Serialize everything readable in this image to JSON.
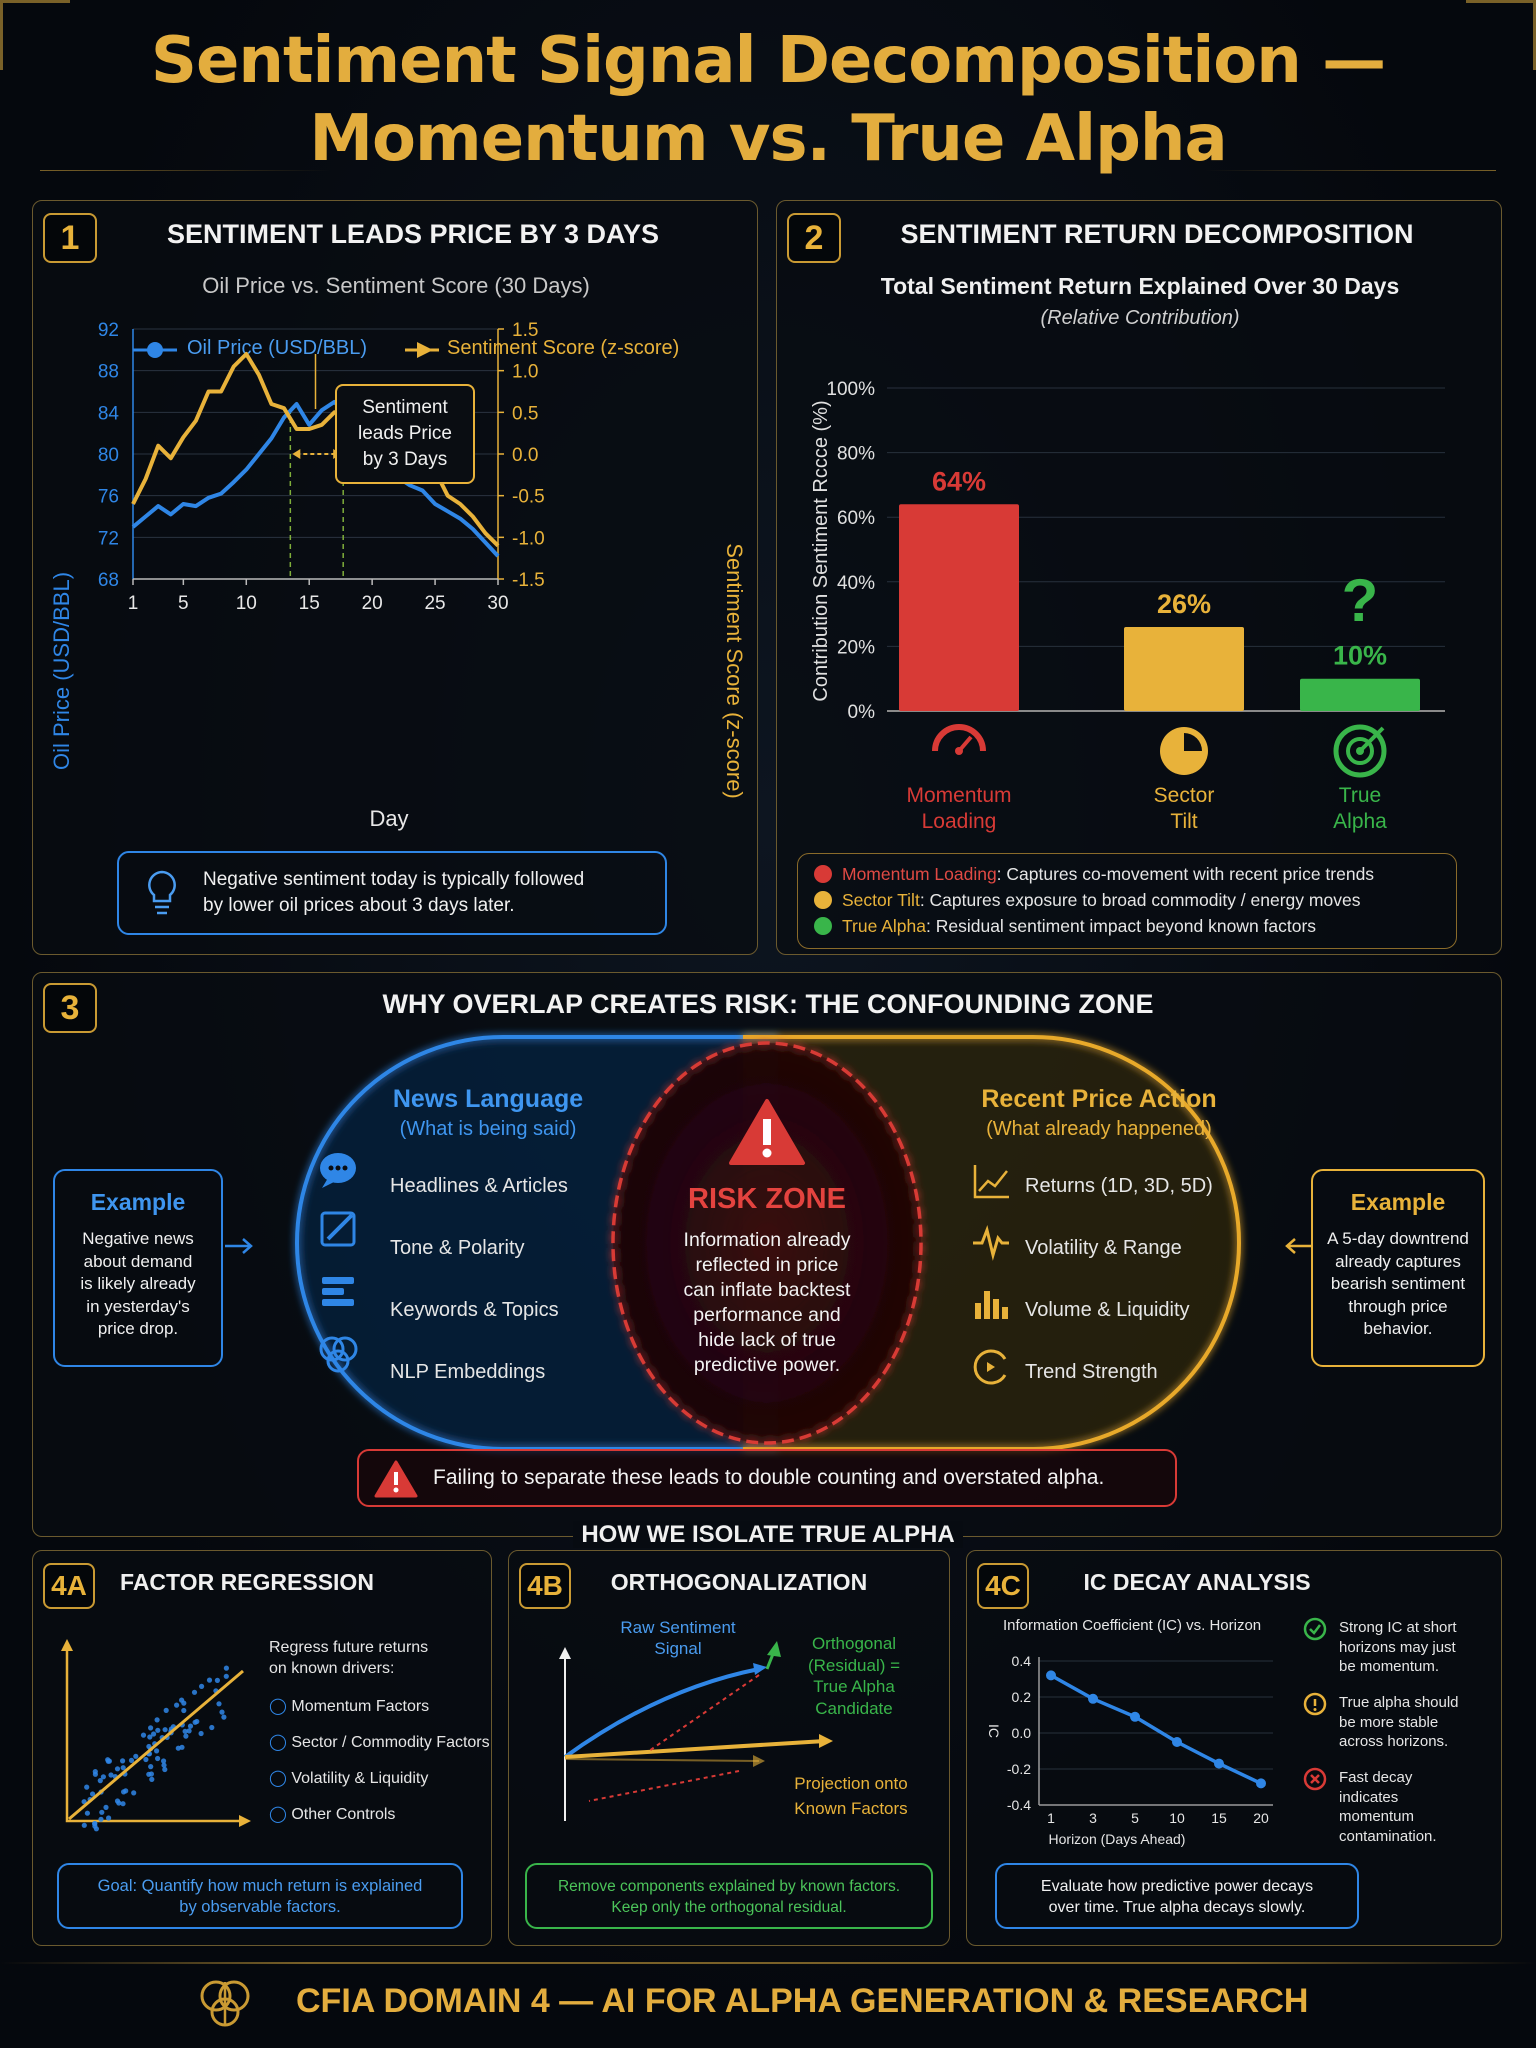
{
  "title_line1": "Sentiment Signal Decomposition —",
  "title_line2": "Momentum vs. True Alpha",
  "p1": {
    "num": "1",
    "title": "SENTIMENT LEADS PRICE BY 3 DAYS",
    "subtitle": "Oil Price vs. Sentiment Score (30 Days)",
    "legend_oil": "Oil Price (USD/BBL)",
    "legend_sent": "Sentiment Score (z-score)",
    "callout_l1": "Sentiment",
    "callout_l2": "leads Price",
    "callout_l3": "by 3 Days",
    "ylabel_left": "Oil Price (USD/BBL)",
    "ylabel_right": "Sentiment Score (z-score)",
    "xlabel": "Day",
    "note_l1": "Negative sentiment today is typically followed",
    "note_l2": "by lower oil prices about 3 days later."
  },
  "p2": {
    "num": "2",
    "title": "SENTIMENT RETURN DECOMPOSITION",
    "subtitle": "Total Sentiment Return Explained Over 30 Days",
    "subtitle2": "(Relative Contribution)",
    "ylabel": "Contribution Sentiment Rccce (%)",
    "question": "?",
    "cat1_l1": "Momentum",
    "cat1_l2": "Loading",
    "cat2_l1": "Sector",
    "cat2_l2": "Tilt",
    "cat3_l1": "True",
    "cat3_l2": "Alpha",
    "leg1_name": "Momentum Loading",
    "leg1_desc": ": Captures co-movement with recent price trends",
    "leg2_name": "Sector Tilt",
    "leg2_desc": ": Captures exposure to broad commodity / energy moves",
    "leg3_name": "True Alpha",
    "leg3_desc": ": Residual sentiment impact beyond known factors"
  },
  "p3": {
    "num": "3",
    "title": "WHY OVERLAP CREATES RISK: THE CONFOUNDING ZONE",
    "left_title": "News Language",
    "left_sub": "(What is being said)",
    "left_items": [
      "Headlines & Articles",
      "Tone & Polarity",
      "Keywords & Topics",
      "NLP Embeddings"
    ],
    "right_title": "Recent Price Action",
    "right_sub": "(What already happened)",
    "right_items": [
      "Returns (1D, 3D, 5D)",
      "Volatility & Range",
      "Volume & Liquidity",
      "Trend Strength"
    ],
    "risk_title": "RISK ZONE",
    "risk_l1": "Information already",
    "risk_l2": "reflected in price",
    "risk_l3": "can inflate backtest",
    "risk_l4": "performance and",
    "risk_l5": "hide lack of true",
    "risk_l6": "predictive power.",
    "ex_left_title": "Example",
    "ex_left_lines": [
      "Negative news",
      "about demand",
      "is likely already",
      "in yesterday's",
      "price drop."
    ],
    "ex_right_title": "Example",
    "ex_right_lines": [
      "A 5-day downtrend",
      "already captures",
      "bearish sentiment",
      "through price",
      "behavior."
    ],
    "warning": "Failing to separate these leads to double counting and overstated alpha."
  },
  "section4_title": "HOW WE ISOLATE TRUE ALPHA",
  "p4a": {
    "num": "4A",
    "title": "FACTOR REGRESSION",
    "intro_l1": "Regress future returns",
    "intro_l2": "on known drivers:",
    "items": [
      "Momentum Factors",
      "Sector / Commodity Factors",
      "Volatility & Liquidity",
      "Other Controls"
    ],
    "goal_l1": "Goal: Quantify how much return is explained",
    "goal_l2": "by observable factors."
  },
  "p4b": {
    "num": "4B",
    "title": "ORTHOGONALIZATION",
    "raw_l1": "Raw Sentiment",
    "raw_l2": "Signal",
    "orth_l1": "Orthogonal",
    "orth_l2": "(Residual) =",
    "orth_l3": "True Alpha",
    "orth_l4": "Candidate",
    "proj_l1": "Projection onto",
    "proj_l2": "Known Factors",
    "note_l1": "Remove components explained by known factors.",
    "note_l2": "Keep only the orthogonal residual."
  },
  "p4c": {
    "num": "4C",
    "title": "IC DECAY ANALYSIS",
    "chart_title": "Information Coefficient (IC) vs. Horizon",
    "ylabel": "IC",
    "xlabel": "Horizon (Days Ahead)",
    "pt1_l1": "Strong IC at short",
    "pt1_l2": "horizons may just",
    "pt1_l3": "be momentum.",
    "pt2_l1": "True alpha should",
    "pt2_l2": "be more stable",
    "pt2_l3": "across horizons.",
    "pt3_l1": "Fast decay",
    "pt3_l2": "indicates",
    "pt3_l3": "momentum",
    "pt3_l4": "contamination.",
    "note_l1": "Evaluate how predictive power decays",
    "note_l2": "over time. True alpha decays slowly."
  },
  "footer": "CFIA DOMAIN 4 — AI FOR ALPHA GENERATION & RESEARCH",
  "colors": {
    "gold": "#e8b23a",
    "blue": "#2f86e6",
    "red": "#d83a36",
    "green": "#39b54a"
  },
  "chart_data": [
    {
      "type": "line",
      "title": "Oil Price vs. Sentiment Score (30 Days)",
      "xlabel": "Day",
      "ylabel": "Oil Price (USD/BBL)",
      "ylabel_right": "Sentiment Score (z-score)",
      "x_ticks": [
        1,
        5,
        10,
        15,
        20,
        25,
        30
      ],
      "x_tick_labels": [
        "1",
        "5",
        "10",
        "15",
        "20",
        "25",
        "30"
      ],
      "xlim": [
        1,
        30
      ],
      "ylim": [
        68,
        92
      ],
      "y_ticks": [
        68,
        72,
        76,
        80,
        84,
        88,
        92
      ],
      "y_tick_labels": [
        "68",
        "72",
        "76",
        "80",
        "84",
        "88",
        "92"
      ],
      "ylim_right": [
        -1.5,
        1.5
      ],
      "y_ticks_right": [
        -1.5,
        -1.0,
        -0.5,
        0.0,
        0.5,
        1.0,
        1.5
      ],
      "y_tick_labels_right": [
        "-1.5",
        "-1.0",
        "-0.5",
        "0.0",
        "0.5",
        "1.0",
        "1.5"
      ],
      "legend": "top",
      "series": [
        {
          "name": "Oil Price (USD/BBL)",
          "axis": "left",
          "color": "#2f86e6",
          "x": [
            1,
            2,
            3,
            4,
            5,
            6,
            7,
            8,
            9,
            10,
            11,
            12,
            13,
            14,
            15,
            16,
            17,
            18,
            19,
            20,
            21,
            22,
            23,
            24,
            25,
            26,
            27,
            28,
            29,
            30
          ],
          "values": [
            73.0,
            74.0,
            75.0,
            74.2,
            75.2,
            75.0,
            75.8,
            76.2,
            77.3,
            78.5,
            80.0,
            81.5,
            83.5,
            84.8,
            82.8,
            84.2,
            85.0,
            83.8,
            81.5,
            80.2,
            79.2,
            77.8,
            77.0,
            76.5,
            75.2,
            74.5,
            73.8,
            72.8,
            71.5,
            70.2
          ]
        },
        {
          "name": "Sentiment Score (z-score)",
          "axis": "right",
          "color": "#e8b23a",
          "x": [
            1,
            2,
            3,
            4,
            5,
            6,
            7,
            8,
            9,
            10,
            11,
            12,
            13,
            14,
            15,
            16,
            17,
            18,
            19,
            20,
            21,
            22,
            23,
            24,
            25,
            26,
            27,
            28,
            29,
            30
          ],
          "values": [
            -0.6,
            -0.3,
            0.1,
            -0.05,
            0.2,
            0.4,
            0.75,
            0.75,
            1.05,
            1.2,
            0.95,
            0.6,
            0.55,
            0.3,
            0.3,
            0.35,
            0.5,
            0.5,
            0.3,
            0.1,
            0.0,
            -0.15,
            -0.05,
            -0.3,
            -0.2,
            -0.5,
            -0.6,
            -0.75,
            -0.95,
            -1.1
          ]
        }
      ],
      "annotations": [
        "Sentiment leads Price by 3 Days"
      ]
    },
    {
      "type": "bar",
      "title": "Total Sentiment Return Explained Over 30 Days",
      "subtitle": "(Relative Contribution)",
      "ylabel": "Contribution Sentiment Rccce (%)",
      "categories": [
        "Momentum Loading",
        "Sector Tilt",
        "True Alpha"
      ],
      "values": [
        64,
        26,
        10
      ],
      "value_labels": [
        "64%",
        "26%",
        "10%"
      ],
      "colors": [
        "#d83a36",
        "#e8b23a",
        "#39b54a"
      ],
      "ylim": [
        0,
        100
      ],
      "y_ticks": [
        0,
        20,
        40,
        60,
        80,
        100
      ],
      "y_tick_labels": [
        "0%",
        "20%",
        "40%",
        "60%",
        "80%",
        "100%"
      ]
    },
    {
      "type": "line",
      "title": "Information Coefficient (IC) vs. Horizon",
      "xlabel": "Horizon (Days Ahead)",
      "ylabel": "IC",
      "categories": [
        "1",
        "3",
        "5",
        "10",
        "15",
        "20"
      ],
      "values": [
        0.32,
        0.19,
        0.09,
        -0.05,
        -0.17,
        -0.28
      ],
      "ylim": [
        -0.4,
        0.4
      ],
      "y_ticks": [
        -0.4,
        -0.2,
        0.0,
        0.2,
        0.4
      ],
      "y_tick_labels": [
        "-0.4",
        "-0.2",
        "0.0",
        "0.2",
        "0.4"
      ],
      "color": "#2f86e6"
    }
  ]
}
